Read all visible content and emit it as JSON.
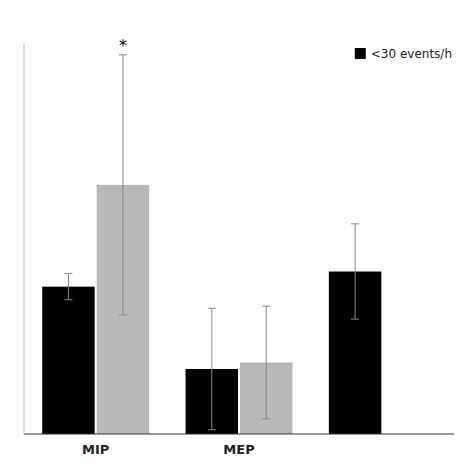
{
  "chart_data": {
    "type": "bar",
    "categories": [
      "MIP",
      "MEP",
      null
    ],
    "series": [
      {
        "name": "<30 events/h",
        "color": "#000000",
        "values": [
          68,
          30,
          75
        ],
        "errors": [
          6,
          28,
          22
        ]
      },
      {
        "color": "#b8b8b8",
        "values": [
          115,
          33,
          null
        ],
        "errors": [
          60,
          26,
          null
        ]
      }
    ],
    "ylim": [
      0,
      180
    ],
    "tick_labels": "x",
    "legend": "upper right",
    "annotations": [
      {
        "text": "*",
        "category": "MIP"
      }
    ]
  }
}
